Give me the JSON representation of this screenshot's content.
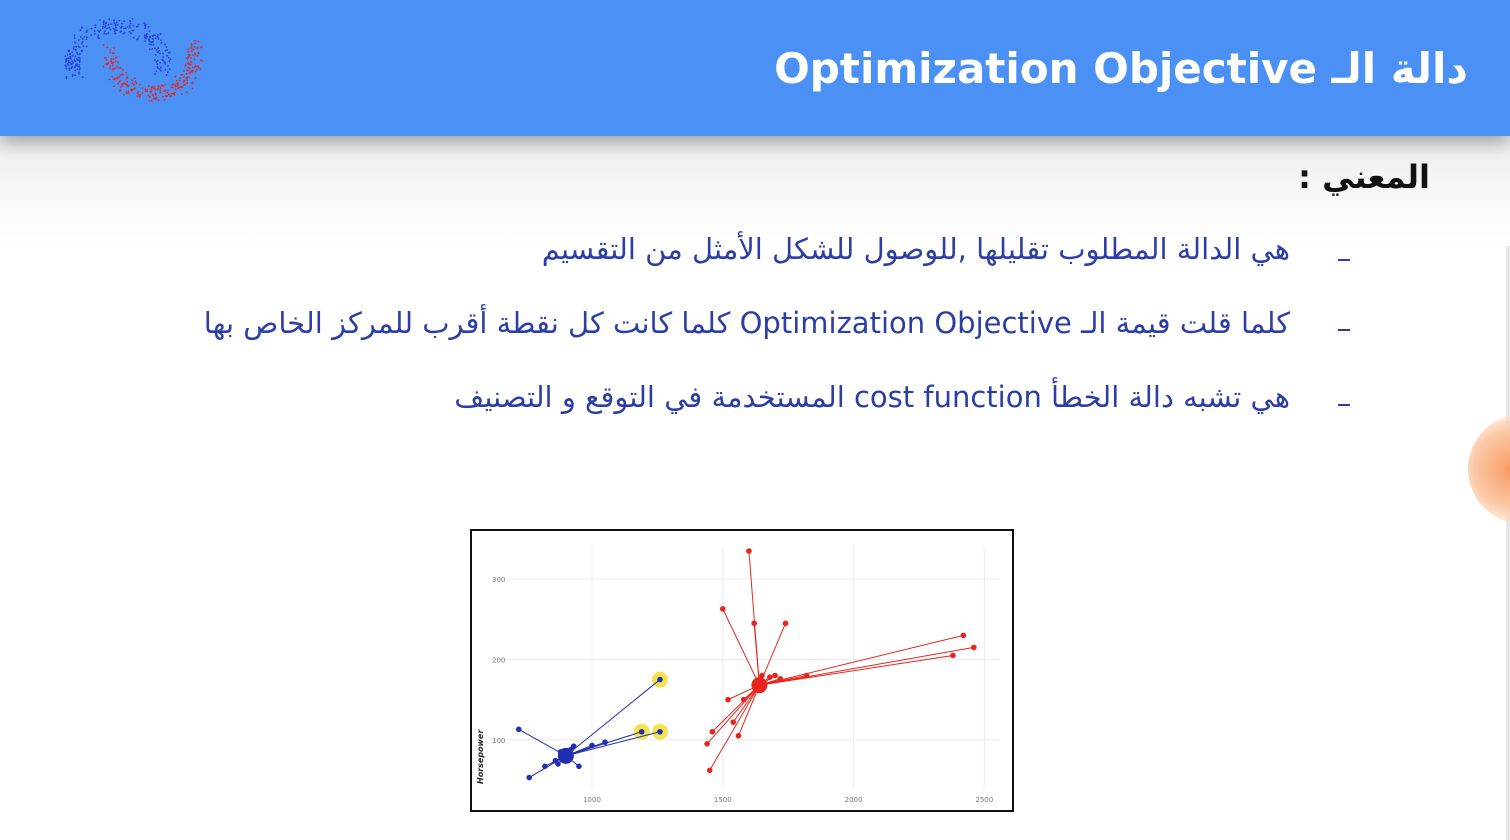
{
  "header": {
    "title": "دالة الـ Optimization Objective",
    "logo_icon": "scatter-logo-icon",
    "background": "#4a90f5"
  },
  "content": {
    "subtitle": "المعني :",
    "bullets": [
      "هي الدالة المطلوب تقليلها  ,للوصول للشكل الأمثل من التقسيم",
      "كلما قلت قيمة الـ  Optimization Objective  كلما كانت كل نقطة أقرب للمركز الخاص بها",
      "هي تشبه دالة الخطأ  cost function المستخدمة في التوقع و التصنيف"
    ],
    "bullet_color": "#2b3ea8"
  },
  "chart_data": {
    "type": "scatter",
    "ylabel": "Horsepower",
    "xlabel": "",
    "xticks": [
      "1000",
      "1500",
      "2000",
      "2500"
    ],
    "yticks": [
      "100",
      "200",
      "300"
    ],
    "xlim": [
      610,
      2560
    ],
    "ylim": [
      40,
      340
    ],
    "grid": true,
    "series": [
      {
        "color": "#1f2fb0",
        "centroid": [
          900,
          80
        ],
        "points": [
          [
            720,
            113
          ],
          [
            760,
            53
          ],
          [
            820,
            67
          ],
          [
            860,
            74
          ],
          [
            870,
            70
          ],
          [
            880,
            85
          ],
          [
            890,
            78
          ],
          [
            900,
            82
          ],
          [
            910,
            76
          ],
          [
            920,
            88
          ],
          [
            930,
            92
          ],
          [
            950,
            67
          ],
          [
            1000,
            93
          ],
          [
            1050,
            97
          ],
          [
            1190,
            110
          ],
          [
            1260,
            110
          ],
          [
            1260,
            175
          ]
        ]
      },
      {
        "color": "#e8241c",
        "centroid": [
          1640,
          168
        ],
        "points": [
          [
            1440,
            95
          ],
          [
            1450,
            62
          ],
          [
            1460,
            110
          ],
          [
            1500,
            263
          ],
          [
            1520,
            150
          ],
          [
            1540,
            122
          ],
          [
            1560,
            105
          ],
          [
            1580,
            150
          ],
          [
            1600,
            335
          ],
          [
            1620,
            245
          ],
          [
            1650,
            180
          ],
          [
            1680,
            178
          ],
          [
            1700,
            180
          ],
          [
            1720,
            176
          ],
          [
            1740,
            245
          ],
          [
            1820,
            180
          ],
          [
            2380,
            205
          ],
          [
            2420,
            230
          ],
          [
            2460,
            215
          ]
        ]
      }
    ],
    "highlighted": [
      [
        1190,
        110
      ],
      [
        1260,
        110
      ],
      [
        1260,
        175
      ]
    ],
    "highlight_color": "#f3e03a"
  }
}
